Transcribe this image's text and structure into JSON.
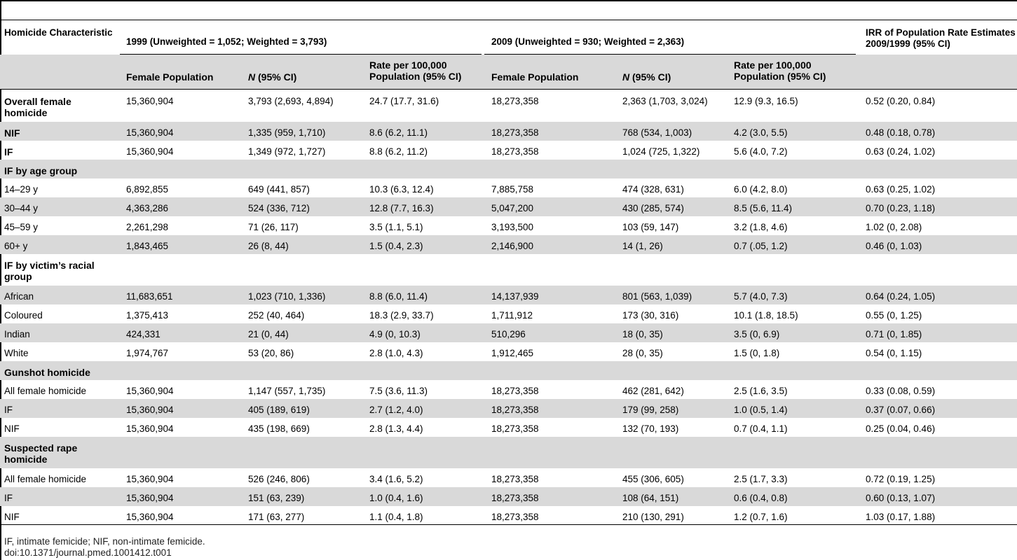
{
  "header": {
    "col0": "Homicide Characteristic",
    "group1999": "1999 (Unweighted = 1,052; Weighted = 3,793)",
    "group2009": "2009 (Unweighted = 930; Weighted = 2,363)",
    "irr": "IRR of Population Rate Estimates 2009/1999 (95% CI)"
  },
  "subheader": {
    "female_pop_1": "Female Population",
    "n_letter_1": "N",
    "n_rest_1": " (95% CI)",
    "rate_1": "Rate per 100,000 Population (95% CI)",
    "female_pop_2": "Female Population",
    "n_letter_2": "N",
    "n_rest_2": " (95% CI)",
    "rate_2": "Rate per 100,000 Population (95% CI)"
  },
  "rows": [
    {
      "label": "Overall female homicide",
      "bold": true,
      "cells": [
        "15,360,904",
        "3,793 (2,693, 4,894)",
        "24.7 (17.7, 31.6)",
        "18,273,358",
        "2,363 (1,703, 3,024)",
        "12.9 (9.3, 16.5)",
        "0.52 (0.20, 0.84)"
      ]
    },
    {
      "label": "NIF",
      "bold": true,
      "cells": [
        "15,360,904",
        "1,335 (959, 1,710)",
        "8.6 (6.2, 11.1)",
        "18,273,358",
        "768 (534, 1,003)",
        "4.2 (3.0, 5.5)",
        "0.48 (0.18, 0.78)"
      ]
    },
    {
      "label": "IF",
      "bold": true,
      "cells": [
        "15,360,904",
        "1,349 (972, 1,727)",
        "8.8 (6.2, 11.2)",
        "18,273,358",
        "1,024 (725, 1,322)",
        "5.6 (4.0, 7.2)",
        "0.63 (0.24, 1.02)"
      ]
    },
    {
      "label": "IF by age group",
      "bold": true,
      "cells": [
        "",
        "",
        "",
        "",
        "",
        "",
        ""
      ]
    },
    {
      "label": "14–29 y",
      "bold": false,
      "cells": [
        "6,892,855",
        "649 (441, 857)",
        "10.3 (6.3, 12.4)",
        "7,885,758",
        "474 (328, 631)",
        "6.0 (4.2, 8.0)",
        "0.63 (0.25, 1.02)"
      ]
    },
    {
      "label": "30–44 y",
      "bold": false,
      "cells": [
        "4,363,286",
        "524 (336, 712)",
        "12.8 (7.7, 16.3)",
        "5,047,200",
        "430 (285, 574)",
        "8.5 (5.6, 11.4)",
        "0.70 (0.23, 1.18)"
      ]
    },
    {
      "label": "45–59 y",
      "bold": false,
      "cells": [
        "2,261,298",
        "71 (26, 117)",
        "3.5 (1.1, 5.1)",
        "3,193,500",
        "103 (59, 147)",
        "3.2 (1.8, 4.6)",
        "1.02 (0, 2.08)"
      ]
    },
    {
      "label": "60+ y",
      "bold": false,
      "cells": [
        "1,843,465",
        "26 (8, 44)",
        "1.5 (0.4, 2.3)",
        "2,146,900",
        "14 (1, 26)",
        "0.7 (.05, 1.2)",
        "0.46 (0, 1.03)"
      ]
    },
    {
      "label": "IF by victim’s racial group",
      "bold": true,
      "cells": [
        "",
        "",
        "",
        "",
        "",
        "",
        ""
      ]
    },
    {
      "label": "African",
      "bold": false,
      "cells": [
        "11,683,651",
        "1,023 (710, 1,336)",
        "8.8 (6.0, 11.4)",
        "14,137,939",
        "801 (563, 1,039)",
        "5.7 (4.0, 7.3)",
        "0.64 (0.24, 1.05)"
      ]
    },
    {
      "label": "Coloured",
      "bold": false,
      "cells": [
        "1,375,413",
        "252 (40, 464)",
        "18.3 (2.9, 33.7)",
        "1,711,912",
        "173 (30, 316)",
        "10.1 (1.8, 18.5)",
        "0.55 (0, 1.25)"
      ]
    },
    {
      "label": "Indian",
      "bold": false,
      "cells": [
        "424,331",
        "21 (0, 44)",
        "4.9 (0, 10.3)",
        "510,296",
        "18 (0, 35)",
        "3.5 (0, 6.9)",
        "0.71 (0, 1.85)"
      ]
    },
    {
      "label": "White",
      "bold": false,
      "cells": [
        "1,974,767",
        "53 (20, 86)",
        "2.8 (1.0, 4.3)",
        "1,912,465",
        "28 (0, 35)",
        "1.5 (0, 1.8)",
        "0.54 (0, 1.15)"
      ]
    },
    {
      "label": "Gunshot homicide",
      "bold": true,
      "cells": [
        "",
        "",
        "",
        "",
        "",
        "",
        ""
      ]
    },
    {
      "label": "All female homicide",
      "bold": false,
      "cells": [
        "15,360,904",
        "1,147 (557, 1,735)",
        "7.5 (3.6, 11.3)",
        "18,273,358",
        "462 (281, 642)",
        "2.5 (1.6, 3.5)",
        "0.33 (0.08, 0.59)"
      ]
    },
    {
      "label": "IF",
      "bold": false,
      "cells": [
        "15,360,904",
        "405 (189, 619)",
        "2.7 (1.2, 4.0)",
        "18,273,358",
        "179 (99, 258)",
        "1.0 (0.5, 1.4)",
        "0.37 (0.07, 0.66)"
      ]
    },
    {
      "label": "NIF",
      "bold": false,
      "cells": [
        "15,360,904",
        "435 (198, 669)",
        "2.8 (1.3, 4.4)",
        "18,273,358",
        "132 (70, 193)",
        "0.7 (0.4, 1.1)",
        "0.25 (0.04, 0.46)"
      ]
    },
    {
      "label": "Suspected rape homicide",
      "bold": true,
      "cells": [
        "",
        "",
        "",
        "",
        "",
        "",
        ""
      ]
    },
    {
      "label": "All female homicide",
      "bold": false,
      "cells": [
        "15,360,904",
        "526 (246, 806)",
        "3.4 (1.6, 5.2)",
        "18,273,358",
        "455 (306, 605)",
        "2.5 (1.7, 3.3)",
        "0.72 (0.19, 1.25)"
      ]
    },
    {
      "label": "IF",
      "bold": false,
      "cells": [
        "15,360,904",
        "151 (63, 239)",
        "1.0 (0.4, 1.6)",
        "18,273,358",
        "108 (64, 151)",
        "0.6 (0.4, 0.8)",
        "0.60 (0.13, 1.07)"
      ]
    },
    {
      "label": "NIF",
      "bold": false,
      "cells": [
        "15,360,904",
        "171 (63, 277)",
        "1.1 (0.4, 1.8)",
        "18,273,358",
        "210 (130, 291)",
        "1.2 (0.7, 1.6)",
        "1.03 (0.17, 1.88)"
      ]
    }
  ],
  "footnotes": {
    "abbrev": "IF, intimate femicide; NIF, non-intimate femicide.",
    "doi": "doi:10.1371/journal.pmed.1001412.t001"
  }
}
